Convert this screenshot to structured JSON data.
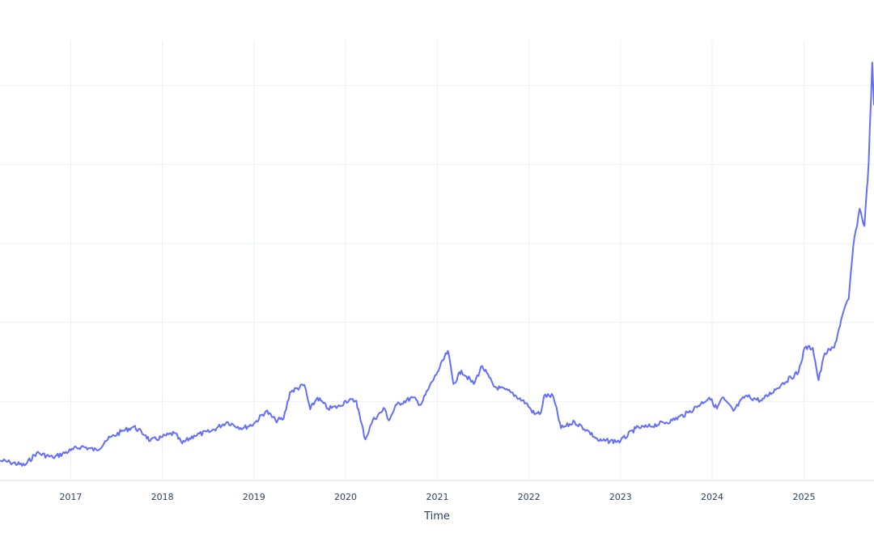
{
  "chart_data": {
    "type": "line",
    "title": "",
    "xlabel": "Time",
    "ylabel": "",
    "xlim": [
      "2016-03-25",
      "2025-10-07"
    ],
    "ylim": [
      0,
      5.57
    ],
    "y_gridlines": [
      0,
      1,
      2,
      3,
      4,
      5
    ],
    "y_tick_labels_visible": false,
    "grid": true,
    "line_color": "#636efa",
    "grid_color": "#ebf0f8",
    "x_ticks": [
      "2017",
      "2018",
      "2019",
      "2020",
      "2021",
      "2022",
      "2023",
      "2024",
      "2025"
    ],
    "series": [
      {
        "x": [
          "2016-03-25",
          "2016-05-04",
          "2016-07-01",
          "2016-08-18",
          "2016-10-22",
          "2017-01-01",
          "2017-02-12",
          "2017-04-16",
          "2017-05-18",
          "2017-07-22",
          "2017-09-09",
          "2017-10-27",
          "2017-11-13",
          "2018-01-01",
          "2018-02-18",
          "2018-03-21",
          "2018-05-08",
          "2018-07-12",
          "2018-09-15",
          "2018-11-18",
          "2019-01-01",
          "2019-02-18",
          "2019-03-28",
          "2019-04-29",
          "2019-05-25",
          "2019-07-21",
          "2019-08-13",
          "2019-09-11",
          "2019-10-23",
          "2019-12-10",
          "2020-01-01",
          "2020-02-13",
          "2020-03-01",
          "2020-03-20",
          "2020-04-18",
          "2020-06-05",
          "2020-06-21",
          "2020-07-23",
          "2020-09-25",
          "2020-10-27",
          "2020-11-28",
          "2021-01-01",
          "2021-02-12",
          "2021-03-06",
          "2021-04-07",
          "2021-05-26",
          "2021-06-28",
          "2021-08-15",
          "2021-10-19",
          "2021-12-20",
          "2022-01-23",
          "2022-02-18",
          "2022-03-02",
          "2022-04-07",
          "2022-05-09",
          "2022-07-02",
          "2022-08-19",
          "2022-10-08",
          "2023-01-01",
          "2023-03-03",
          "2023-04-20",
          "2023-07-26",
          "2023-09-29",
          "2023-12-20",
          "2024-01-20",
          "2024-02-10",
          "2024-03-26",
          "2024-05-12",
          "2024-07-16",
          "2024-10-04",
          "2024-12-10",
          "2025-01-04",
          "2025-02-05",
          "2025-02-28",
          "2025-03-25",
          "2025-05-01",
          "2025-06-03",
          "2025-06-28",
          "2025-07-16",
          "2025-08-11",
          "2025-08-30",
          "2025-09-16",
          "2025-09-30",
          "2025-10-07"
        ],
        "y": [
          0.25,
          0.23,
          0.19,
          0.35,
          0.29,
          0.38,
          0.43,
          0.38,
          0.5,
          0.62,
          0.68,
          0.57,
          0.5,
          0.55,
          0.6,
          0.47,
          0.57,
          0.62,
          0.74,
          0.66,
          0.72,
          0.88,
          0.76,
          0.78,
          1.12,
          1.21,
          0.9,
          1.05,
          0.91,
          0.94,
          1.01,
          1.01,
          0.76,
          0.52,
          0.76,
          0.91,
          0.76,
          0.96,
          1.05,
          0.96,
          1.17,
          1.37,
          1.64,
          1.22,
          1.39,
          1.22,
          1.45,
          1.19,
          1.12,
          0.98,
          0.84,
          0.86,
          1.07,
          1.07,
          0.66,
          0.74,
          0.64,
          0.5,
          0.5,
          0.66,
          0.68,
          0.76,
          0.86,
          1.05,
          0.91,
          1.05,
          0.88,
          1.07,
          1.01,
          1.22,
          1.37,
          1.68,
          1.68,
          1.27,
          1.61,
          1.68,
          2.09,
          2.3,
          2.96,
          3.44,
          3.22,
          4.04,
          5.29,
          4.75
        ]
      }
    ]
  }
}
